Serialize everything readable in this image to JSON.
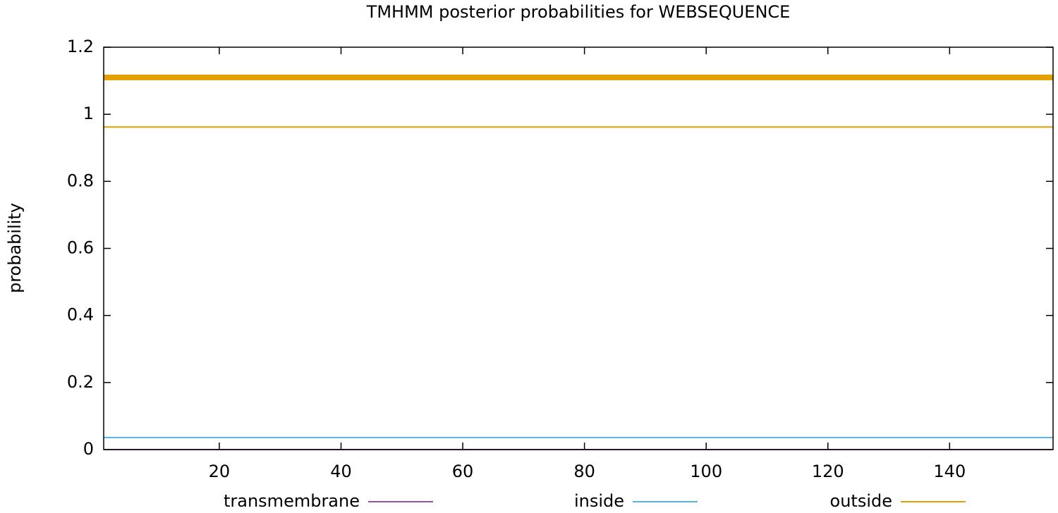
{
  "chart_data": {
    "type": "line",
    "title": "TMHMM posterior probabilities for WEBSEQUENCE",
    "y_label": "probability",
    "x": [
      1,
      157
    ],
    "series": [
      {
        "name": "transmembrane",
        "color": "#9a52a8",
        "values": [
          0,
          0
        ]
      },
      {
        "name": "inside",
        "color": "#56b4e9",
        "values": [
          0.036,
          0.036
        ]
      },
      {
        "name": "outside",
        "color": "#e69f00",
        "values": [
          0.962,
          0.962
        ]
      }
    ],
    "regions": [
      {
        "start": 1,
        "end": 157,
        "y": 1.11,
        "color": "#e69f00"
      }
    ],
    "xlim": [
      1,
      157
    ],
    "ylim": [
      0,
      1.2
    ],
    "xticks": [
      20,
      40,
      60,
      80,
      100,
      120,
      140
    ],
    "yticks": [
      0,
      0.2,
      0.4,
      0.6,
      0.8,
      1,
      1.2
    ],
    "legend": "bottom"
  }
}
